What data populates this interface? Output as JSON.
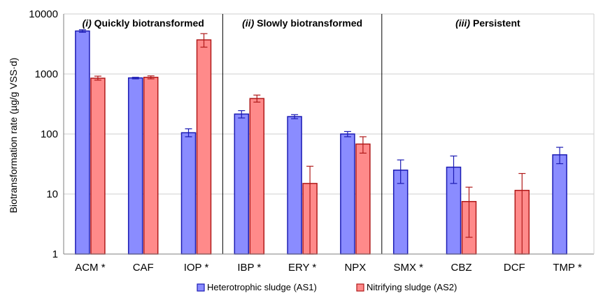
{
  "chart_data": {
    "type": "bar",
    "ylabel": "Biotransformation rate (µg/g VSS·d)",
    "yscale": "log",
    "ylim": [
      1,
      10000
    ],
    "yticks": [
      "1",
      "10",
      "100",
      "1000",
      "10000"
    ],
    "grid": true,
    "legend_position": "bottom",
    "categories": [
      "ACM *",
      "CAF",
      "IOP *",
      "IBP *",
      "ERY *",
      "NPX",
      "SMX *",
      "CBZ",
      "DCF",
      "TMP *"
    ],
    "groups": [
      {
        "roman": "(i)",
        "label": "Quickly biotransformed",
        "categories": [
          0,
          1,
          2
        ]
      },
      {
        "roman": "(ii)",
        "label": "Slowly biotransformed",
        "categories": [
          3,
          4,
          5
        ]
      },
      {
        "roman": "(iii)",
        "label": "Persistent",
        "categories": [
          6,
          7,
          8,
          9
        ]
      }
    ],
    "series": [
      {
        "name": "Heterotrophic sludge (AS1)",
        "color": "#8a8cff",
        "stroke": "#1b1bb3",
        "values": [
          5200,
          860,
          105,
          215,
          195,
          100,
          25,
          28,
          null,
          45
        ],
        "err_low": [
          4950,
          830,
          90,
          185,
          180,
          90,
          15,
          15,
          null,
          32
        ],
        "err_high": [
          5450,
          880,
          122,
          245,
          210,
          110,
          37,
          43,
          null,
          60
        ]
      },
      {
        "name": "Nitrifying sludge (AS2)",
        "color": "#ff8a8a",
        "stroke": "#b01a1a",
        "values": [
          850,
          880,
          3700,
          390,
          15,
          68,
          null,
          7.5,
          11.5,
          null
        ],
        "err_low": [
          790,
          830,
          2800,
          340,
          1,
          48,
          null,
          1.9,
          1,
          null
        ],
        "err_high": [
          920,
          930,
          4700,
          445,
          29,
          90,
          null,
          13,
          22,
          null
        ]
      }
    ]
  }
}
